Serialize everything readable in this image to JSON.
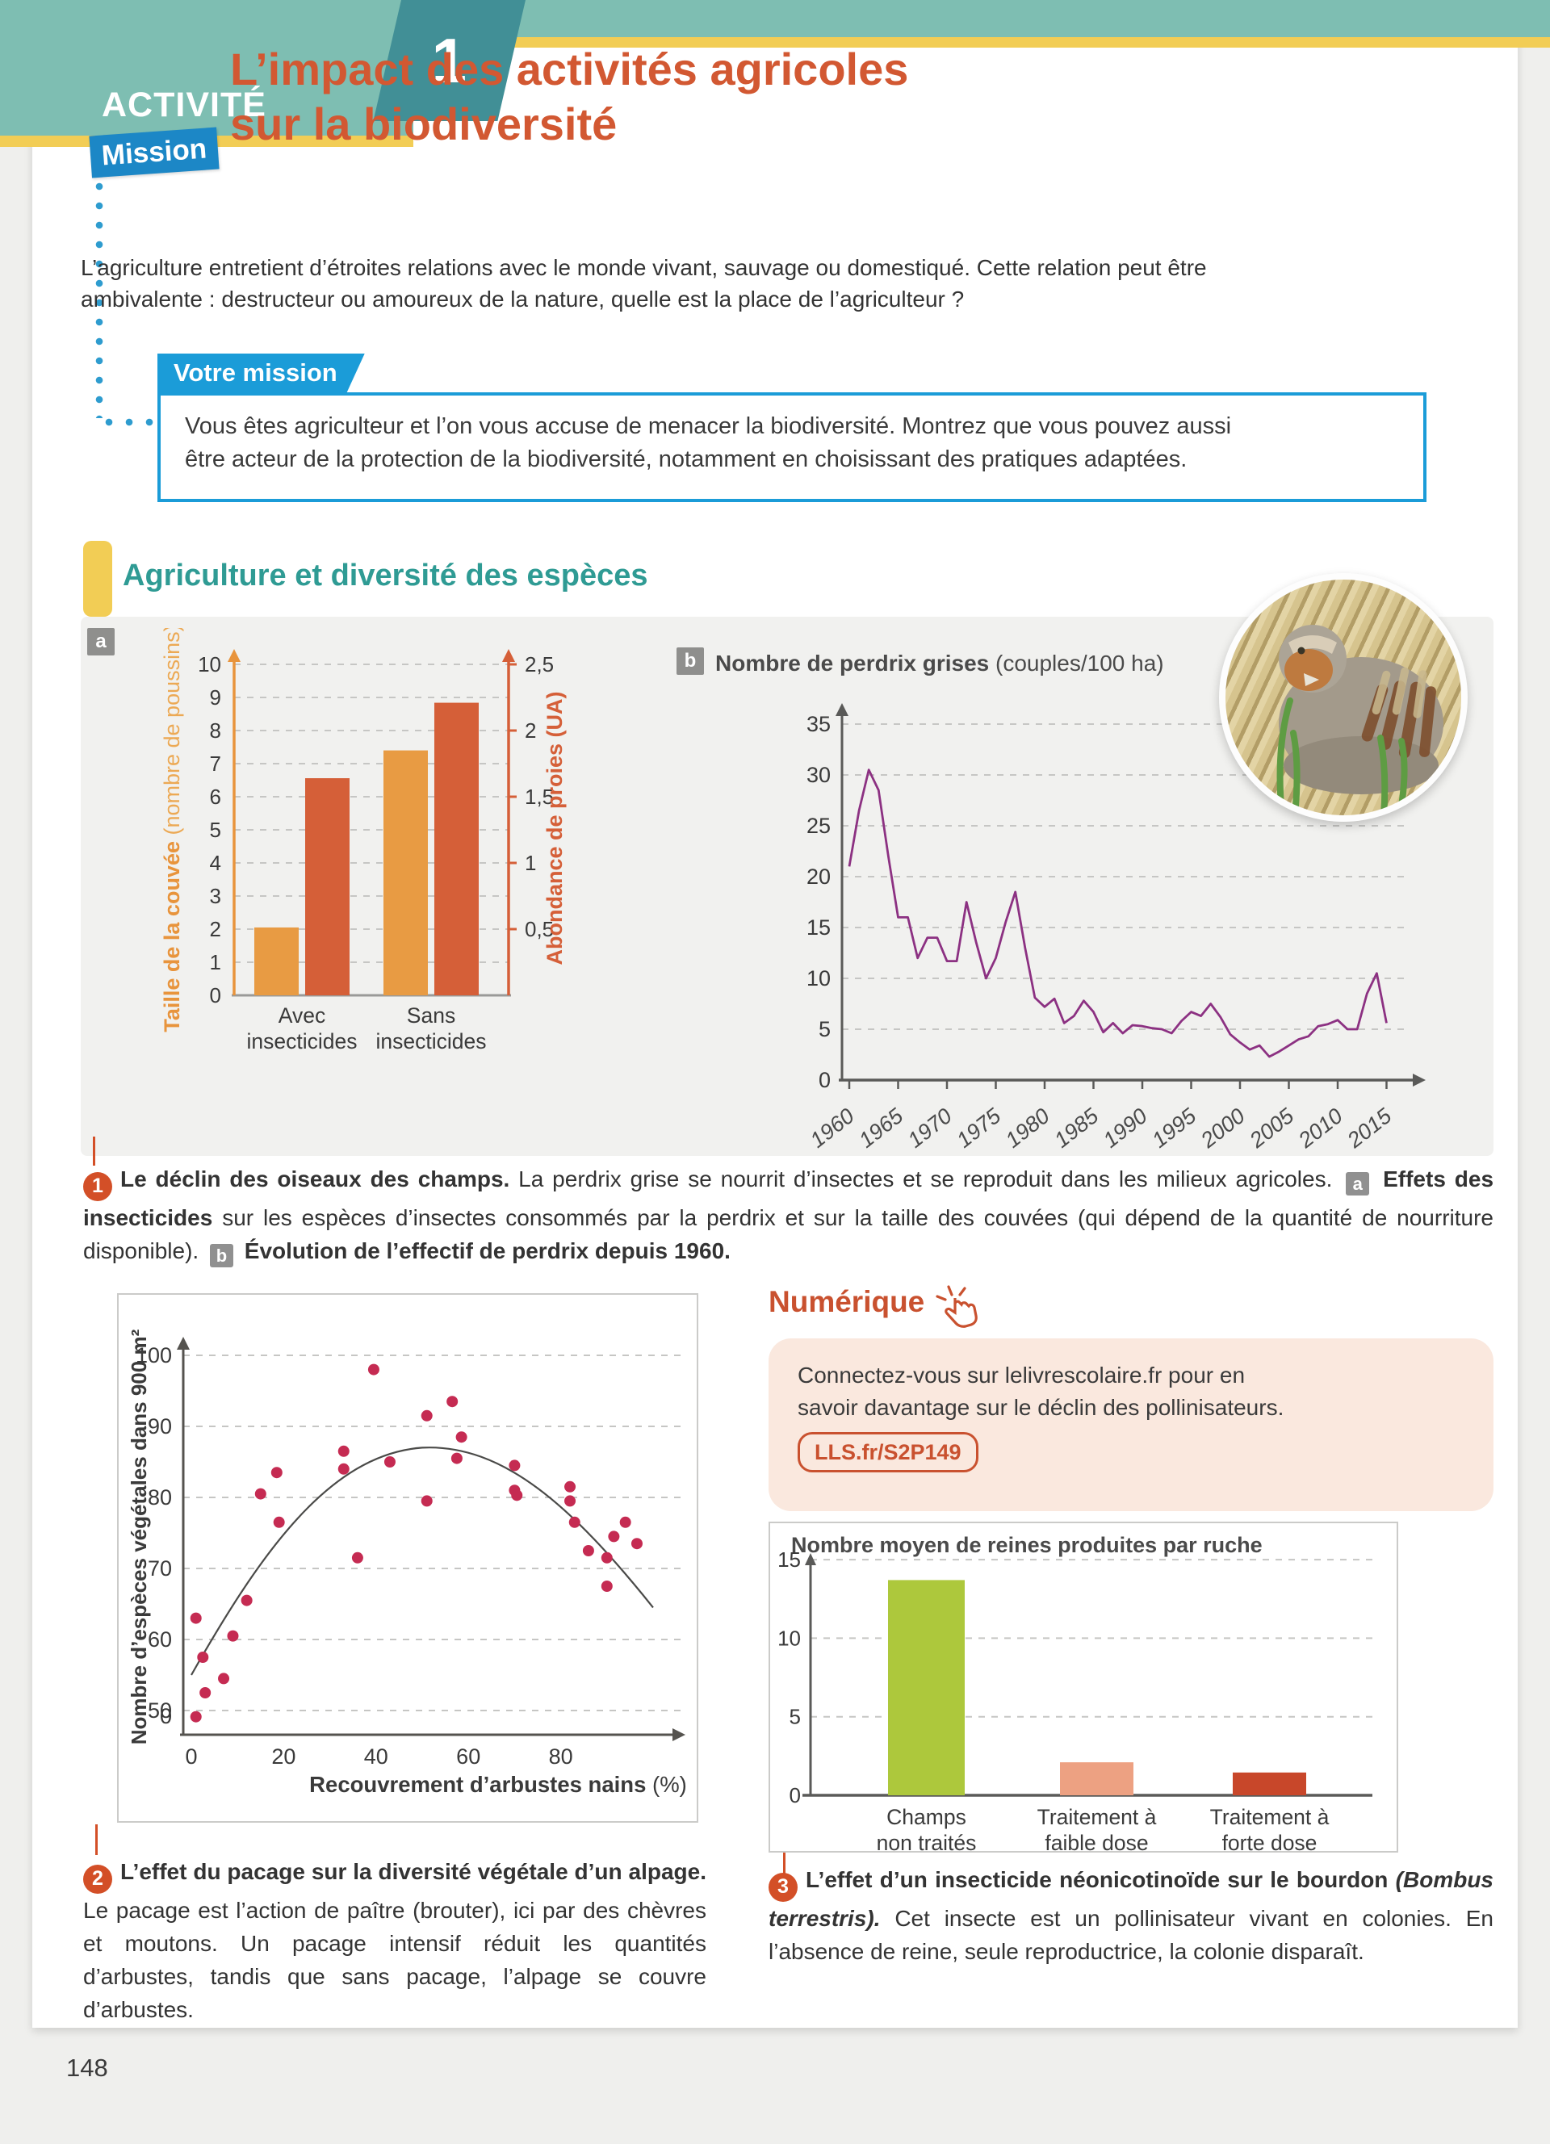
{
  "banner": {
    "activity_label": "ACTIVITÉ",
    "activity_number": "1",
    "mission_badge": "Mission",
    "title_line1": "L’impact des activités agricoles",
    "title_line2": "sur la biodiversité"
  },
  "intro": {
    "lines": [
      "L’agriculture entretient d’étroites relations avec le monde vivant, sauvage ou domestiqué. Cette relation peut être",
      "ambivalente : destructeur ou amoureux de la nature, quelle est la place de l’agriculteur ?"
    ]
  },
  "mission": {
    "label": "Votre mission",
    "lines": [
      "Vous êtes agriculteur et l’on vous accuse de menacer la biodiversité. Montrez que vous pouvez aussi",
      "être acteur de la protection de la biodiversité, notamment en choisissant des pratiques adaptées."
    ]
  },
  "section": {
    "title": "Agriculture et diversité des espèces"
  },
  "colors": {
    "teal_band": "#7EBEB2",
    "teal_dark": "#418F96",
    "yellow": "#F2CD55",
    "title_orange": "#D25832",
    "blue": "#1B9CD8",
    "section_teal": "#2F9B94",
    "panel_gray": "#F1F1EF",
    "bar_orange": "#E89B43",
    "bar_red": "#D55F38",
    "line_purple": "#8C3182",
    "scatter_pink": "#C52B52",
    "green": "#ADC83C",
    "salmon": "#EDA182",
    "red_dark": "#C8472A",
    "balloon_red": "#D34F27",
    "numerique_red": "#C9512F"
  },
  "chart_data": [
    {
      "id": "insecticides",
      "type": "bar-dual",
      "badge": "a",
      "left_axis": {
        "label_bold": "Taille de la couvée",
        "label_normal": " (nombre de poussins)",
        "max": 10,
        "step": 1,
        "ticks": [
          "0",
          "1",
          "2",
          "3",
          "4",
          "5",
          "6",
          "7",
          "8",
          "9",
          "10"
        ],
        "color": "#E8943C"
      },
      "right_axis": {
        "label": "Abondance de proies (UA)",
        "max": 2.5,
        "step": 0.5,
        "ticks": [
          "0,5",
          "1",
          "1,5",
          "2",
          "2,5"
        ],
        "color": "#D55F38"
      },
      "categories": [
        [
          "Avec",
          "insecticides"
        ],
        [
          "Sans",
          "insecticides"
        ]
      ],
      "series": [
        {
          "name": "Taille de la couvée (nombre de poussins)",
          "axis": "left",
          "color": "#E89B43",
          "values": [
            2.05,
            7.4
          ]
        },
        {
          "name": "Abondance de proies (UA)",
          "axis": "right",
          "color": "#D55F38",
          "values": [
            1.64,
            2.21
          ]
        }
      ]
    },
    {
      "id": "perdrix",
      "type": "line",
      "badge": "b",
      "title_bold": "Nombre de perdrix grises",
      "title_normal": " (couples/100 ha)",
      "color": "#8C3182",
      "ylim": [
        0,
        35
      ],
      "yticks": [
        0,
        5,
        10,
        15,
        20,
        25,
        30,
        35
      ],
      "x_start": 1960,
      "x_step": 1,
      "x_tick_labels": [
        "1960",
        "1965",
        "1970",
        "1975",
        "1980",
        "1985",
        "1990",
        "1995",
        "2000",
        "2005",
        "2010",
        "2015"
      ],
      "values": [
        21,
        26.5,
        30.5,
        28.5,
        22,
        16,
        16,
        12,
        14,
        14,
        11.7,
        11.7,
        17.5,
        13.5,
        10,
        12,
        15.5,
        18.5,
        13,
        8.1,
        7.2,
        8,
        5.6,
        6.3,
        7.8,
        6.7,
        4.7,
        5.6,
        4.6,
        5.4,
        5.3,
        5.1,
        5,
        4.6,
        5.8,
        6.7,
        6.3,
        7.5,
        6.2,
        4.5,
        3.7,
        3,
        3.4,
        2.3,
        2.8,
        3.4,
        4,
        4.3,
        5.3,
        5.5,
        5.9,
        5,
        5,
        8.5,
        10.5,
        5.6
      ]
    },
    {
      "id": "pacage",
      "type": "scatter",
      "ylabel": "Nombre d’espèces végétales dans 900 m²",
      "xlabel_bold": "Recouvrement d’arbustes nains",
      "xlabel_normal": " (%)",
      "point_color": "#C52B52",
      "yticks": [
        0,
        50,
        60,
        70,
        80,
        90,
        100
      ],
      "xticks": [
        0,
        20,
        40,
        60,
        80
      ],
      "points": [
        [
          1,
          46.5
        ],
        [
          1,
          63
        ],
        [
          2.5,
          57.5
        ],
        [
          3,
          52.5
        ],
        [
          7,
          54.5
        ],
        [
          9,
          60.5
        ],
        [
          12,
          65.5
        ],
        [
          15,
          80.5
        ],
        [
          18.5,
          83.5
        ],
        [
          19,
          76.5
        ],
        [
          33,
          86.5
        ],
        [
          33,
          84
        ],
        [
          36,
          71.5
        ],
        [
          39.5,
          98
        ],
        [
          43,
          85
        ],
        [
          51,
          91.5
        ],
        [
          51,
          79.5
        ],
        [
          56.5,
          93.5
        ],
        [
          58.5,
          88.5
        ],
        [
          57.5,
          85.5
        ],
        [
          70,
          84.5
        ],
        [
          70,
          81
        ],
        [
          70.5,
          80.3
        ],
        [
          82,
          81.5
        ],
        [
          82,
          79.5
        ],
        [
          83,
          76.5
        ],
        [
          86,
          72.5
        ],
        [
          90,
          71.5
        ],
        [
          90,
          67.5
        ],
        [
          91.5,
          74.5
        ],
        [
          94,
          76.5
        ],
        [
          96.5,
          73.5
        ]
      ],
      "trend": {
        "start": [
          0,
          55
        ],
        "peak": [
          50,
          87
        ],
        "end": [
          100,
          64.5
        ]
      }
    },
    {
      "id": "reines",
      "type": "bar",
      "title": "Nombre moyen de reines produites par ruche",
      "ylim": [
        0,
        15
      ],
      "yticks": [
        0,
        5,
        10,
        15
      ],
      "categories": [
        [
          "Champs",
          "non traités"
        ],
        [
          "Traitement à",
          "faible dose"
        ],
        [
          "Traitement à",
          "forte dose"
        ]
      ],
      "values": [
        13.7,
        2.1,
        1.45
      ],
      "colors": [
        "#ADC83C",
        "#EDA182",
        "#C8472A"
      ]
    }
  ],
  "caption1": {
    "runs": [
      {
        "s": "num",
        "t": "1"
      },
      {
        "s": "b",
        "t": "Le déclin des oiseaux des champs. "
      },
      {
        "s": "n",
        "t": "La perdrix grise se nourrit d’insectes et se reproduit dans les milieux agricoles. "
      },
      {
        "s": "badge",
        "t": "a"
      },
      {
        "s": "b",
        "t": " Effets des insecticides "
      },
      {
        "s": "n",
        "t": "sur les espèces d’insectes consommés par la perdrix et sur la taille des couvées (qui dépend de la quantité de nourriture disponible). "
      },
      {
        "s": "badge",
        "t": "b"
      },
      {
        "s": "b",
        "t": " Évolution de l’effectif de perdrix depuis 1960."
      }
    ]
  },
  "caption2": {
    "runs": [
      {
        "s": "num",
        "t": "2"
      },
      {
        "s": "b",
        "t": "L’effet du pacage sur la diversité végétale d’un alpage. "
      },
      {
        "s": "n",
        "t": "Le pacage est l’action de paître (brouter), ici par des chèvres et moutons. Un pacage intensif réduit les quantités d’arbustes, tandis que sans pacage, l’alpage se couvre d’arbustes."
      }
    ]
  },
  "caption3": {
    "runs": [
      {
        "s": "num",
        "t": "3"
      },
      {
        "s": "b",
        "t": "L’effet d’un insecticide néonicotinoïde sur le bourdon "
      },
      {
        "s": "i",
        "t": "(Bombus terrestris)."
      },
      {
        "s": "n",
        "t": " Cet insecte est un pollinisateur vivant en colonies. En l’absence de reine, seule reproductrice, la colonie disparaît."
      }
    ]
  },
  "numerique": {
    "title": "Numérique",
    "lines": [
      "Connectez-vous sur lelivrescolaire.fr pour en",
      "savoir davantage sur le déclin des pollinisateurs."
    ],
    "link": "LLS.fr/S2P149"
  },
  "page_number": "148"
}
